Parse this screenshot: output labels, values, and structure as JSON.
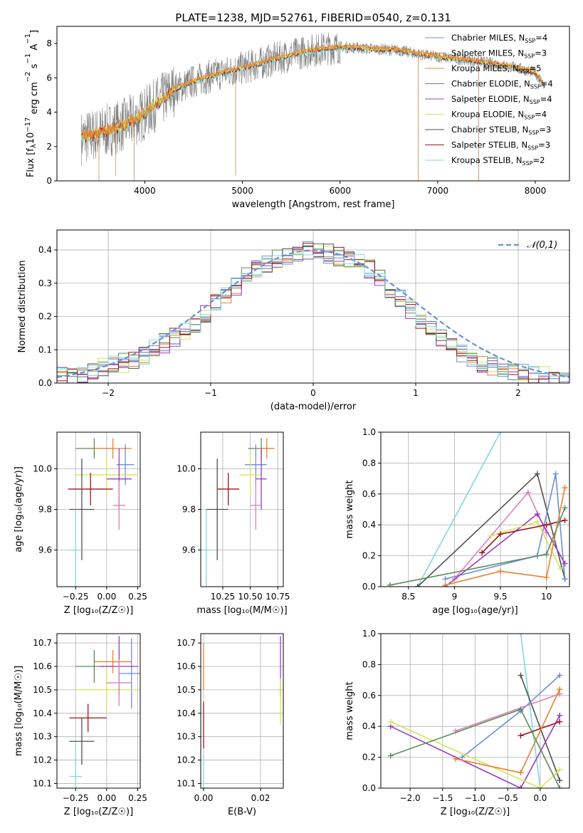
{
  "figure": {
    "title": "PLATE=1238, MJD=52761, FIBERID=0540, z=0.131"
  },
  "series_colors": [
    "#6a8fd9",
    "#e88030",
    "#4d7ea8",
    "#5b8c5a",
    "#9a3bc4",
    "#d7e35a",
    "#505050",
    "#a01414",
    "#82dada"
  ],
  "legend_entries": [
    {
      "label": "Chabrier MILES, N",
      "sub": "SSP",
      "tail": "=4",
      "color": "#6a8fd9"
    },
    {
      "label": "Salpeter MILES, N",
      "sub": "SSP",
      "tail": "=3",
      "color": "#e88030"
    },
    {
      "label": "Kroupa MILES, N",
      "sub": "SSP",
      "tail": "=5",
      "color": "#e08a30"
    },
    {
      "label": "Chabrier ELODIE, N",
      "sub": "SSP",
      "tail": "=4",
      "color": "#5b8c5a"
    },
    {
      "label": "Salpeter ELODIE, N",
      "sub": "SSP",
      "tail": "=4",
      "color": "#9a3bc4"
    },
    {
      "label": "Kroupa ELODIE, N",
      "sub": "SSP",
      "tail": "=4",
      "color": "#d7e35a"
    },
    {
      "label": "Chabrier STELIB, N",
      "sub": "SSP",
      "tail": "=3",
      "color": "#505050"
    },
    {
      "label": "Salpeter STELIB, N",
      "sub": "SSP",
      "tail": "=3",
      "color": "#a01414"
    },
    {
      "label": "Kroupa STELIB, N",
      "sub": "SSP",
      "tail": "=2",
      "color": "#82dada"
    }
  ],
  "chart_data": [
    {
      "id": "spectrum",
      "type": "line",
      "xlabel": "wavelength [Angstrom, rest frame]",
      "ylabel_parts": [
        "Flux [f",
        "λ",
        "10",
        "−17",
        " erg cm",
        "−2",
        " s",
        "−1",
        " A",
        "−1",
        "]"
      ],
      "xlim": [
        3100,
        8350
      ],
      "ylim": [
        0,
        9
      ],
      "xticks": [
        4000,
        5000,
        6000,
        7000,
        8000
      ],
      "yticks": [
        0,
        2,
        4,
        6,
        8
      ],
      "model_x": [
        3350,
        3500,
        3650,
        3800,
        3950,
        4100,
        4300,
        4500,
        4800,
        5100,
        5400,
        5700,
        6000,
        6300,
        6600,
        6900,
        7200,
        7500,
        7800,
        8000,
        8100
      ],
      "model_y": [
        2.5,
        2.7,
        3.0,
        3.3,
        3.7,
        4.4,
        5.3,
        5.8,
        6.3,
        6.7,
        7.2,
        7.6,
        7.8,
        7.7,
        7.6,
        7.3,
        7.1,
        6.9,
        6.6,
        6.3,
        5.5
      ]
    },
    {
      "id": "residual-hist",
      "type": "bar",
      "xlabel": "(data-model)/error",
      "ylabel": "Normed distribution",
      "legend": "𝒩(0,1)",
      "xlim": [
        -2.5,
        2.5
      ],
      "ylim": [
        0,
        0.46
      ],
      "xticks": [
        -2,
        -1,
        0,
        1,
        2
      ],
      "xticklabels": [
        "−2",
        "−1",
        "0",
        "1",
        "2"
      ],
      "yticks": [
        0.0,
        0.1,
        0.2,
        0.3,
        0.4
      ],
      "bin_width": 0.1,
      "bin_start": -2.5,
      "hist": [
        0.02,
        0.025,
        0.03,
        0.04,
        0.05,
        0.055,
        0.06,
        0.07,
        0.085,
        0.1,
        0.12,
        0.14,
        0.16,
        0.18,
        0.21,
        0.24,
        0.26,
        0.29,
        0.32,
        0.34,
        0.36,
        0.37,
        0.38,
        0.39,
        0.4,
        0.4,
        0.39,
        0.38,
        0.37,
        0.36,
        0.34,
        0.31,
        0.28,
        0.25,
        0.22,
        0.19,
        0.16,
        0.13,
        0.11,
        0.09,
        0.075,
        0.06,
        0.05,
        0.04,
        0.035,
        0.03,
        0.025,
        0.02,
        0.015,
        0.01
      ]
    },
    {
      "id": "age-vs-Z",
      "type": "scatter",
      "xlabel": "Z [log₁₀(Z/Z☉)]",
      "ylabel": "age  [log₁₀(age/yr)]",
      "xlim": [
        -0.4,
        0.27
      ],
      "ylim": [
        9.42,
        10.18
      ],
      "xticks": [
        -0.25,
        0.0,
        0.25
      ],
      "xticklabels": [
        "−0.25",
        "0.00",
        "0.25"
      ],
      "yticks": [
        9.6,
        9.8,
        10.0
      ],
      "points": [
        {
          "x": -0.1,
          "y": 10.1,
          "xerr": 0.15,
          "yerr": 0.05,
          "color": "#5b8c5a"
        },
        {
          "x": 0.05,
          "y": 10.1,
          "xerr": 0.15,
          "yerr": 0.05,
          "color": "#e88030"
        },
        {
          "x": 0.15,
          "y": 10.02,
          "xerr": 0.07,
          "yerr": 0.1,
          "color": "#6a8fd9"
        },
        {
          "x": 0.0,
          "y": 9.97,
          "xerr": 0.25,
          "yerr": 0.1,
          "color": "#d7e35a"
        },
        {
          "x": 0.1,
          "y": 9.95,
          "xerr": 0.1,
          "yerr": 0.15,
          "color": "#9a3bc4"
        },
        {
          "x": -0.13,
          "y": 9.9,
          "xerr": 0.18,
          "yerr": 0.08,
          "color": "#a01414"
        },
        {
          "x": 0.1,
          "y": 9.82,
          "xerr": 0.05,
          "yerr": 0.12,
          "color": "#e080b8"
        },
        {
          "x": -0.2,
          "y": 9.8,
          "xerr": 0.1,
          "yerr": 0.25,
          "color": "#505050"
        },
        {
          "x": -0.25,
          "y": 9.6,
          "xerr": 0.05,
          "yerr": 0.2,
          "color": "#82dada"
        }
      ]
    },
    {
      "id": "age-vs-mass",
      "type": "scatter",
      "xlabel": "mass [log₁₀(M/M☉)]",
      "ylabel": "",
      "xlim": [
        10.05,
        10.8
      ],
      "ylim": [
        9.42,
        10.18
      ],
      "xticks": [
        10.25,
        10.5,
        10.75
      ],
      "xticklabels": [
        "10.25",
        "10.50",
        "10.75"
      ],
      "yticks": [
        9.6,
        9.8,
        10.0
      ],
      "points": [
        {
          "x": 10.6,
          "y": 10.1,
          "xerr": 0.12,
          "yerr": 0.05,
          "color": "#5b8c5a"
        },
        {
          "x": 10.65,
          "y": 10.1,
          "xerr": 0.07,
          "yerr": 0.05,
          "color": "#e88030"
        },
        {
          "x": 10.55,
          "y": 10.02,
          "xerr": 0.1,
          "yerr": 0.1,
          "color": "#6a8fd9"
        },
        {
          "x": 10.5,
          "y": 9.97,
          "xerr": 0.1,
          "yerr": 0.1,
          "color": "#d7e35a"
        },
        {
          "x": 10.6,
          "y": 9.95,
          "xerr": 0.05,
          "yerr": 0.15,
          "color": "#9a3bc4"
        },
        {
          "x": 10.3,
          "y": 9.9,
          "xerr": 0.1,
          "yerr": 0.08,
          "color": "#a01414"
        },
        {
          "x": 10.55,
          "y": 9.82,
          "xerr": 0.05,
          "yerr": 0.12,
          "color": "#e080b8"
        },
        {
          "x": 10.2,
          "y": 9.8,
          "xerr": 0.1,
          "yerr": 0.25,
          "color": "#505050"
        },
        {
          "x": 10.1,
          "y": 9.6,
          "xerr": 0.05,
          "yerr": 0.2,
          "color": "#82dada"
        }
      ]
    },
    {
      "id": "weight-vs-age",
      "type": "line",
      "xlabel": "age  [log₁₀(age/yr)]",
      "ylabel": "mass weight",
      "xlim": [
        8.2,
        10.25
      ],
      "ylim": [
        0,
        1.0
      ],
      "xticks": [
        8.5,
        9.0,
        9.5,
        10.0
      ],
      "yticks": [
        0.0,
        0.2,
        0.4,
        0.6,
        0.8,
        1.0
      ],
      "series": [
        {
          "color": "#82dada",
          "x": [
            8.6,
            9.5
          ],
          "y": [
            0.0,
            1.0
          ]
        },
        {
          "color": "#505050",
          "x": [
            8.6,
            9.9,
            10.2
          ],
          "y": [
            0.0,
            0.73,
            0.05
          ]
        },
        {
          "color": "#6a8fd9",
          "x": [
            8.9,
            9.9,
            10.1,
            10.2
          ],
          "y": [
            0.05,
            0.2,
            0.73,
            0.05
          ]
        },
        {
          "color": "#e080b8",
          "x": [
            9.0,
            9.8,
            10.0
          ],
          "y": [
            0.05,
            0.61,
            0.35
          ]
        },
        {
          "color": "#9a3bc4",
          "x": [
            8.9,
            9.9,
            10.2
          ],
          "y": [
            0.0,
            0.47,
            0.15
          ]
        },
        {
          "color": "#d7e35a",
          "x": [
            9.4,
            9.9,
            10.15
          ],
          "y": [
            0.33,
            0.42,
            0.12
          ]
        },
        {
          "color": "#a01414",
          "x": [
            9.3,
            9.5,
            10.0,
            10.2
          ],
          "y": [
            0.22,
            0.34,
            0.4,
            0.43
          ]
        },
        {
          "color": "#e88030",
          "x": [
            8.9,
            9.5,
            10.0,
            10.2
          ],
          "y": [
            0.01,
            0.1,
            0.06,
            0.64
          ]
        },
        {
          "color": "#5b8c5a",
          "x": [
            8.3,
            10.0,
            10.2
          ],
          "y": [
            0.01,
            0.21,
            0.51
          ]
        }
      ]
    },
    {
      "id": "mass-vs-Z",
      "type": "scatter",
      "xlabel": "Z [log₁₀(Z/Z☉)]",
      "ylabel": "mass [log₁₀(M/M☉)]",
      "xlim": [
        -0.4,
        0.27
      ],
      "ylim": [
        10.08,
        10.74
      ],
      "xticks": [
        -0.25,
        0.0,
        0.25
      ],
      "xticklabels": [
        "−0.25",
        "0.00",
        "0.25"
      ],
      "yticks": [
        10.1,
        10.2,
        10.3,
        10.4,
        10.5,
        10.6,
        10.7
      ],
      "points": [
        {
          "x": -0.1,
          "y": 10.6,
          "xerr": 0.15,
          "yerr": 0.07,
          "color": "#5b8c5a"
        },
        {
          "x": 0.05,
          "y": 10.62,
          "xerr": 0.15,
          "yerr": 0.05,
          "color": "#e88030"
        },
        {
          "x": 0.2,
          "y": 10.57,
          "xerr": 0.1,
          "yerr": 0.15,
          "color": "#6a8fd9"
        },
        {
          "x": 0.0,
          "y": 10.5,
          "xerr": 0.25,
          "yerr": 0.1,
          "color": "#d7e35a"
        },
        {
          "x": 0.1,
          "y": 10.6,
          "xerr": 0.15,
          "yerr": 0.13,
          "color": "#9a3bc4"
        },
        {
          "x": -0.15,
          "y": 10.38,
          "xerr": 0.15,
          "yerr": 0.06,
          "color": "#a01414"
        },
        {
          "x": 0.1,
          "y": 10.53,
          "xerr": 0.1,
          "yerr": 0.1,
          "color": "#e080b8"
        },
        {
          "x": -0.2,
          "y": 10.28,
          "xerr": 0.1,
          "yerr": 0.1,
          "color": "#505050"
        },
        {
          "x": -0.25,
          "y": 10.13,
          "xerr": 0.05,
          "yerr": 0.14,
          "color": "#82dada"
        }
      ]
    },
    {
      "id": "mass-vs-EBV",
      "type": "scatter",
      "xlabel": "E(B-V)",
      "ylabel": "",
      "xlim": [
        -0.001,
        0.028
      ],
      "ylim": [
        10.08,
        10.74
      ],
      "xticks": [
        0.0,
        0.02
      ],
      "xticklabels": [
        "0.00",
        "0.02"
      ],
      "yticks": [
        10.1,
        10.2,
        10.3,
        10.4,
        10.5,
        10.6,
        10.7
      ],
      "points": [
        {
          "x": 0.0,
          "y": 10.6,
          "xerr": 0,
          "yerr": 0.1,
          "color": "#e88030"
        },
        {
          "x": 0.0,
          "y": 10.35,
          "xerr": 0,
          "yerr": 0.1,
          "color": "#a01414"
        },
        {
          "x": 0.0,
          "y": 10.15,
          "xerr": 0,
          "yerr": 0.07,
          "color": "#82dada"
        },
        {
          "x": 0.027,
          "y": 10.6,
          "xerr": 0,
          "yerr": 0.13,
          "color": "#9a3bc4"
        },
        {
          "x": 0.027,
          "y": 10.45,
          "xerr": 0,
          "yerr": 0.1,
          "color": "#d7e35a"
        }
      ]
    },
    {
      "id": "weight-vs-Z",
      "type": "line",
      "xlabel": "Z [log₁₀(Z/Z☉)]",
      "ylabel": "mass weight",
      "xlim": [
        -2.45,
        0.45
      ],
      "ylim": [
        0,
        1.0
      ],
      "xticks": [
        -2.0,
        -1.5,
        -1.0,
        -0.5,
        0.0
      ],
      "xticklabels": [
        "−2.0",
        "−1.5",
        "−1.0",
        "−0.5",
        "0.0"
      ],
      "yticks": [
        0.0,
        0.2,
        0.4,
        0.6,
        0.8,
        1.0
      ],
      "series": [
        {
          "color": "#82dada",
          "x": [
            -0.3,
            0.0
          ],
          "y": [
            1.0,
            0.0
          ]
        },
        {
          "color": "#505050",
          "x": [
            -0.3,
            0.3
          ],
          "y": [
            0.73,
            0.05
          ]
        },
        {
          "color": "#6a8fd9",
          "x": [
            -1.2,
            -0.3,
            0.3
          ],
          "y": [
            0.2,
            0.5,
            0.73
          ]
        },
        {
          "color": "#e080b8",
          "x": [
            -1.3,
            0.3
          ],
          "y": [
            0.37,
            0.61
          ]
        },
        {
          "color": "#9a3bc4",
          "x": [
            -2.3,
            -0.3,
            0.3
          ],
          "y": [
            0.4,
            0.0,
            0.47
          ]
        },
        {
          "color": "#d7e35a",
          "x": [
            -2.3,
            0.0,
            0.3
          ],
          "y": [
            0.43,
            0.0,
            0.12
          ]
        },
        {
          "color": "#a01414",
          "x": [
            -0.3,
            0.3
          ],
          "y": [
            0.34,
            0.43
          ]
        },
        {
          "color": "#e88030",
          "x": [
            -1.3,
            -0.3,
            0.3
          ],
          "y": [
            0.19,
            0.1,
            0.64
          ]
        },
        {
          "color": "#5b8c5a",
          "x": [
            -2.3,
            -0.3,
            0.3
          ],
          "y": [
            0.21,
            0.51,
            0.0
          ]
        }
      ]
    }
  ]
}
